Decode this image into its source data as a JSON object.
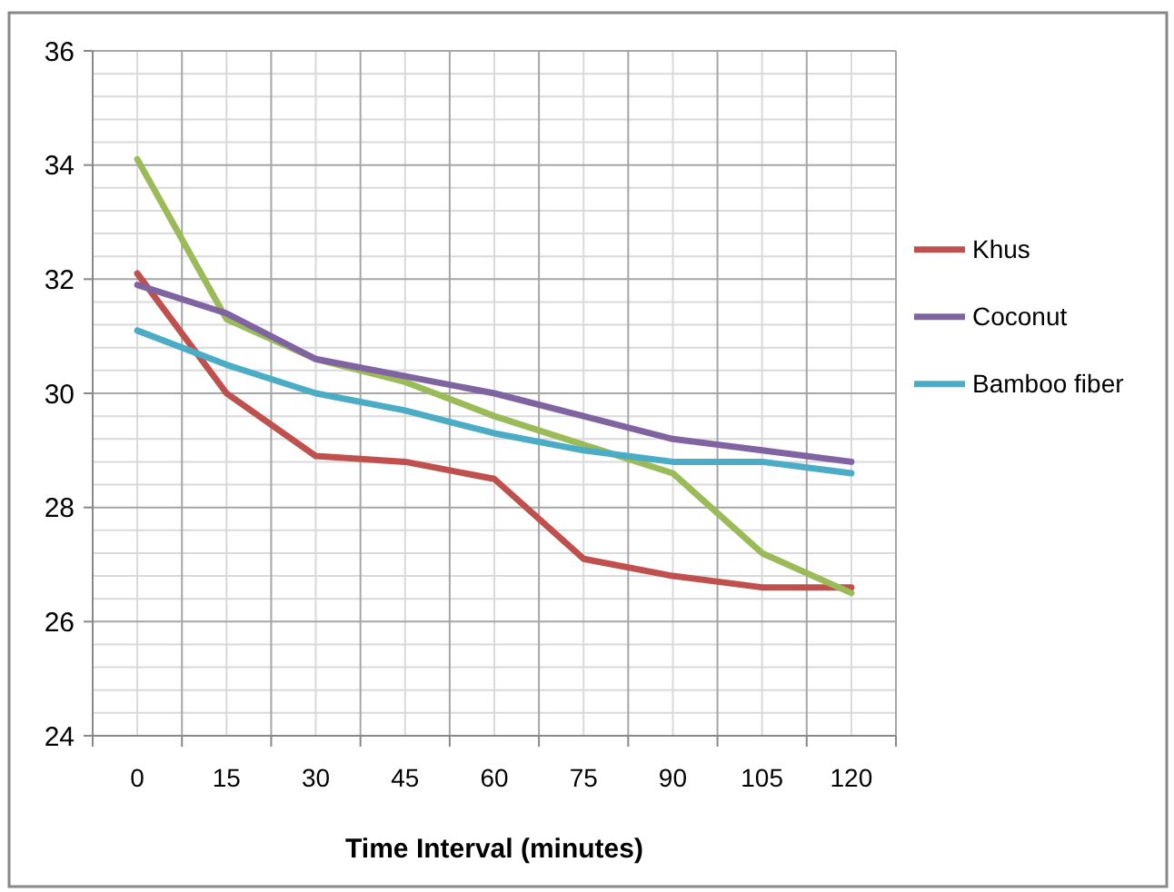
{
  "chart_data": {
    "type": "line",
    "xlabel": "Time Interval  (minutes)",
    "categories": [
      "0",
      "15",
      "30",
      "45",
      "60",
      "75",
      "90",
      "105",
      "120"
    ],
    "ylim": [
      24,
      36
    ],
    "yticks": [
      24,
      26,
      28,
      30,
      32,
      34,
      36
    ],
    "grid": true,
    "legend": "right",
    "marker": "none",
    "line_style": "solid",
    "series": [
      {
        "name": "Khus",
        "color": "#c0504d",
        "values": [
          32.1,
          30.0,
          28.9,
          28.8,
          28.5,
          27.1,
          26.8,
          26.6,
          26.6
        ]
      },
      {
        "color": "#9bbb59",
        "values": [
          34.1,
          31.3,
          30.6,
          30.2,
          29.6,
          29.1,
          28.6,
          27.2,
          26.5
        ]
      },
      {
        "name": "Coconut",
        "color": "#8064a2",
        "values": [
          31.9,
          31.4,
          30.6,
          30.3,
          30.0,
          29.6,
          29.2,
          29.0,
          28.8
        ]
      },
      {
        "name": "Bamboo fiber",
        "color": "#4bacc6",
        "values": [
          31.1,
          30.5,
          30.0,
          29.7,
          29.3,
          29.0,
          28.8,
          28.8,
          28.6
        ]
      }
    ]
  }
}
